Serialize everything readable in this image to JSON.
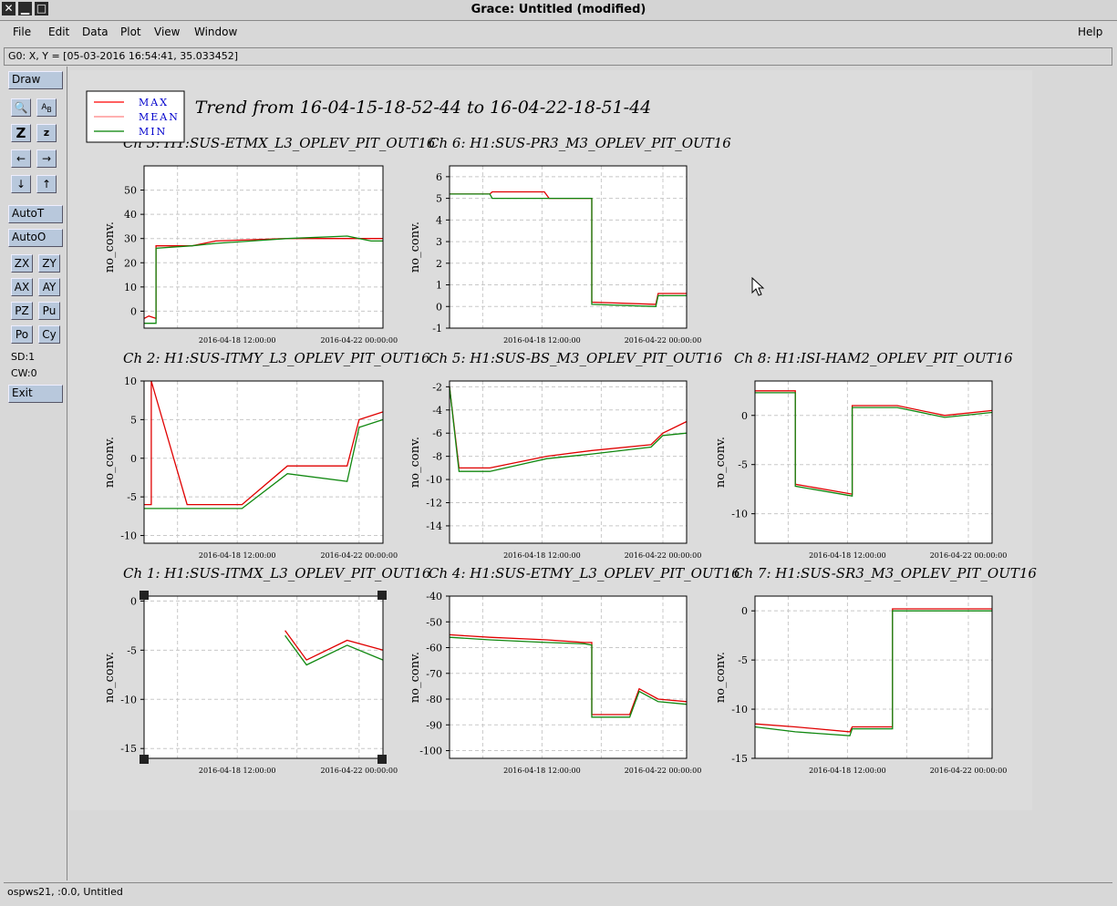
{
  "window": {
    "title": "Grace: Untitled (modified)"
  },
  "menu": {
    "items": [
      "File",
      "Edit",
      "Data",
      "Plot",
      "View",
      "Window"
    ],
    "help": "Help"
  },
  "coords": "G0: X, Y = [05-03-2016 16:54:41, 35.033452]",
  "toolbar": {
    "draw": "Draw",
    "autoT": "AutoT",
    "autoO": "AutoO",
    "zx": "ZX",
    "zy": "ZY",
    "ax": "AX",
    "ay": "AY",
    "pz": "PZ",
    "pu": "Pu",
    "po": "Po",
    "cy": "Cy",
    "sd": "SD:1",
    "cw": "CW:0",
    "exit": "Exit"
  },
  "status": "ospws21, :0.0, Untitled",
  "plot": {
    "main_title": "Trend from 16-04-15-18-52-44 to 16-04-22-18-51-44",
    "legend": [
      {
        "label": "MAX",
        "color": "#ff0000"
      },
      {
        "label": "MEAN",
        "color": "#ff8080"
      },
      {
        "label": "MIN",
        "color": "#008000"
      }
    ],
    "colors": {
      "max": "#e00000",
      "min": "#108810"
    }
  },
  "chart_data": [
    {
      "type": "line",
      "title": "Ch 3: H1:SUS-ETMX_L3_OPLEV_PIT_OUT16",
      "ylabel": "no_conv.",
      "xticks": [
        "2016-04-18 12:00:00",
        "2016-04-22 00:00:00"
      ],
      "ylim": [
        -7,
        60
      ],
      "yticks": [
        0,
        10,
        20,
        30,
        40,
        50
      ],
      "series": [
        {
          "name": "MAX",
          "points": [
            [
              0,
              -3
            ],
            [
              0.02,
              -2
            ],
            [
              0.05,
              -3
            ],
            [
              0.05,
              27
            ],
            [
              0.2,
              27
            ],
            [
              0.3,
              29
            ],
            [
              0.45,
              29.5
            ],
            [
              0.6,
              30
            ],
            [
              0.85,
              30
            ],
            [
              0.95,
              30
            ],
            [
              1,
              30
            ]
          ]
        },
        {
          "name": "MIN",
          "points": [
            [
              0,
              -5
            ],
            [
              0.05,
              -5
            ],
            [
              0.05,
              26
            ],
            [
              0.2,
              27
            ],
            [
              0.3,
              28
            ],
            [
              0.45,
              29
            ],
            [
              0.6,
              30
            ],
            [
              0.85,
              31
            ],
            [
              0.95,
              29
            ],
            [
              1,
              29
            ]
          ]
        }
      ]
    },
    {
      "type": "line",
      "title": "Ch 6: H1:SUS-PR3_M3_OPLEV_PIT_OUT16",
      "ylabel": "no_conv.",
      "xticks": [
        "2016-04-18 12:00:00",
        "2016-04-22 00:00:00"
      ],
      "ylim": [
        -1,
        6.5
      ],
      "yticks": [
        -1,
        0,
        1,
        2,
        3,
        4,
        5,
        6
      ],
      "series": [
        {
          "name": "MAX",
          "points": [
            [
              0,
              5.2
            ],
            [
              0.17,
              5.2
            ],
            [
              0.18,
              5.3
            ],
            [
              0.4,
              5.3
            ],
            [
              0.42,
              5
            ],
            [
              0.6,
              5
            ],
            [
              0.6,
              0.2
            ],
            [
              0.87,
              0.1
            ],
            [
              0.88,
              0.6
            ],
            [
              1,
              0.6
            ]
          ]
        },
        {
          "name": "MIN",
          "points": [
            [
              0,
              5.2
            ],
            [
              0.17,
              5.2
            ],
            [
              0.18,
              5
            ],
            [
              0.4,
              5
            ],
            [
              0.42,
              5
            ],
            [
              0.6,
              5
            ],
            [
              0.6,
              0.1
            ],
            [
              0.87,
              0
            ],
            [
              0.88,
              0.5
            ],
            [
              1,
              0.5
            ]
          ]
        }
      ]
    },
    {
      "type": "line",
      "title": "Ch 2: H1:SUS-ITMY_L3_OPLEV_PIT_OUT16",
      "ylabel": "no_conv.",
      "xticks": [
        "2016-04-18 12:00:00",
        "2016-04-22 00:00:00"
      ],
      "ylim": [
        -11,
        10
      ],
      "yticks": [
        -10,
        -5,
        0,
        5,
        10
      ],
      "series": [
        {
          "name": "MAX",
          "points": [
            [
              0,
              -6
            ],
            [
              0.03,
              -6
            ],
            [
              0.03,
              10
            ],
            [
              0.18,
              -6
            ],
            [
              0.41,
              -6
            ],
            [
              0.6,
              -1
            ],
            [
              0.85,
              -1
            ],
            [
              0.9,
              5
            ],
            [
              1,
              6
            ]
          ]
        },
        {
          "name": "MIN",
          "points": [
            [
              0,
              -6.5
            ],
            [
              0.03,
              -6.5
            ],
            [
              0.18,
              -6.5
            ],
            [
              0.41,
              -6.5
            ],
            [
              0.6,
              -2
            ],
            [
              0.85,
              -3
            ],
            [
              0.9,
              4
            ],
            [
              1,
              5
            ]
          ]
        }
      ]
    },
    {
      "type": "line",
      "title": "Ch 5: H1:SUS-BS_M3_OPLEV_PIT_OUT16",
      "ylabel": "no_conv.",
      "xticks": [
        "2016-04-18 12:00:00",
        "2016-04-22 00:00:00"
      ],
      "ylim": [
        -15.5,
        -1.5
      ],
      "yticks": [
        -14,
        -12,
        -10,
        -8,
        -6,
        -4,
        -2
      ],
      "series": [
        {
          "name": "MAX",
          "points": [
            [
              0,
              -2
            ],
            [
              0.04,
              -9
            ],
            [
              0.17,
              -9
            ],
            [
              0.41,
              -8
            ],
            [
              0.6,
              -7.5
            ],
            [
              0.85,
              -7
            ],
            [
              0.9,
              -6
            ],
            [
              1,
              -5
            ]
          ]
        },
        {
          "name": "MIN",
          "points": [
            [
              0,
              -2
            ],
            [
              0.04,
              -9.3
            ],
            [
              0.17,
              -9.3
            ],
            [
              0.41,
              -8.2
            ],
            [
              0.6,
              -7.8
            ],
            [
              0.85,
              -7.2
            ],
            [
              0.9,
              -6.2
            ],
            [
              1,
              -6
            ]
          ]
        }
      ]
    },
    {
      "type": "line",
      "title": "Ch 8: H1:ISI-HAM2_OPLEV_PIT_OUT16",
      "ylabel": "no_conv.",
      "xticks": [
        "2016-04-18 12:00:00",
        "2016-04-22 00:00:00"
      ],
      "ylim": [
        -13,
        3.5
      ],
      "yticks": [
        -10,
        -5,
        0
      ],
      "series": [
        {
          "name": "MAX",
          "points": [
            [
              0,
              2.5
            ],
            [
              0.17,
              2.5
            ],
            [
              0.17,
              -7
            ],
            [
              0.41,
              -8
            ],
            [
              0.41,
              1
            ],
            [
              0.6,
              1
            ],
            [
              0.8,
              0
            ],
            [
              1,
              0.5
            ]
          ]
        },
        {
          "name": "MIN",
          "points": [
            [
              0,
              2.3
            ],
            [
              0.17,
              2.3
            ],
            [
              0.17,
              -7.2
            ],
            [
              0.41,
              -8.2
            ],
            [
              0.41,
              0.8
            ],
            [
              0.6,
              0.8
            ],
            [
              0.8,
              -0.2
            ],
            [
              1,
              0.3
            ]
          ]
        }
      ]
    },
    {
      "type": "line",
      "title": "Ch 1: H1:SUS-ITMX_L3_OPLEV_PIT_OUT16",
      "ylabel": "no_conv.",
      "xticks": [
        "2016-04-18 12:00:00",
        "2016-04-22 00:00:00"
      ],
      "ylim": [
        -16,
        0.5
      ],
      "yticks": [
        -15,
        -10,
        -5,
        0
      ],
      "series": [
        {
          "name": "MAX",
          "points": [
            [
              0.59,
              -3
            ],
            [
              0.68,
              -6
            ],
            [
              0.85,
              -4
            ],
            [
              1,
              -5
            ]
          ]
        },
        {
          "name": "MIN",
          "points": [
            [
              0.59,
              -3.5
            ],
            [
              0.68,
              -6.5
            ],
            [
              0.85,
              -4.5
            ],
            [
              1,
              -6
            ]
          ]
        }
      ]
    },
    {
      "type": "line",
      "title": "Ch 4: H1:SUS-ETMY_L3_OPLEV_PIT_OUT16",
      "ylabel": "no_conv.",
      "xticks": [
        "2016-04-18 12:00:00",
        "2016-04-22 00:00:00"
      ],
      "ylim": [
        -103,
        -40
      ],
      "yticks": [
        -100,
        -90,
        -80,
        -70,
        -60,
        -50,
        -40
      ],
      "series": [
        {
          "name": "MAX",
          "points": [
            [
              0,
              -55
            ],
            [
              0.17,
              -56
            ],
            [
              0.41,
              -57
            ],
            [
              0.57,
              -58
            ],
            [
              0.6,
              -58
            ],
            [
              0.6,
              -86
            ],
            [
              0.76,
              -86
            ],
            [
              0.8,
              -76
            ],
            [
              0.88,
              -80
            ],
            [
              1,
              -81
            ]
          ]
        },
        {
          "name": "MIN",
          "points": [
            [
              0,
              -56
            ],
            [
              0.17,
              -57
            ],
            [
              0.41,
              -58
            ],
            [
              0.57,
              -58.5
            ],
            [
              0.6,
              -59
            ],
            [
              0.6,
              -87
            ],
            [
              0.76,
              -87
            ],
            [
              0.8,
              -77
            ],
            [
              0.88,
              -81
            ],
            [
              1,
              -82
            ]
          ]
        }
      ]
    },
    {
      "type": "line",
      "title": "Ch 7: H1:SUS-SR3_M3_OPLEV_PIT_OUT16",
      "ylabel": "no_conv.",
      "xticks": [
        "2016-04-18 12:00:00",
        "2016-04-22 00:00:00"
      ],
      "ylim": [
        -15,
        1.5
      ],
      "yticks": [
        -15,
        -10,
        -5,
        0
      ],
      "series": [
        {
          "name": "MAX",
          "points": [
            [
              0,
              -11.5
            ],
            [
              0.17,
              -11.8
            ],
            [
              0.4,
              -12.3
            ],
            [
              0.41,
              -11.8
            ],
            [
              0.58,
              -11.8
            ],
            [
              0.58,
              0.2
            ],
            [
              1,
              0.2
            ]
          ]
        },
        {
          "name": "MIN",
          "points": [
            [
              0,
              -11.8
            ],
            [
              0.17,
              -12.3
            ],
            [
              0.4,
              -12.7
            ],
            [
              0.41,
              -12
            ],
            [
              0.58,
              -12
            ],
            [
              0.58,
              0
            ],
            [
              1,
              0
            ]
          ]
        }
      ]
    }
  ]
}
